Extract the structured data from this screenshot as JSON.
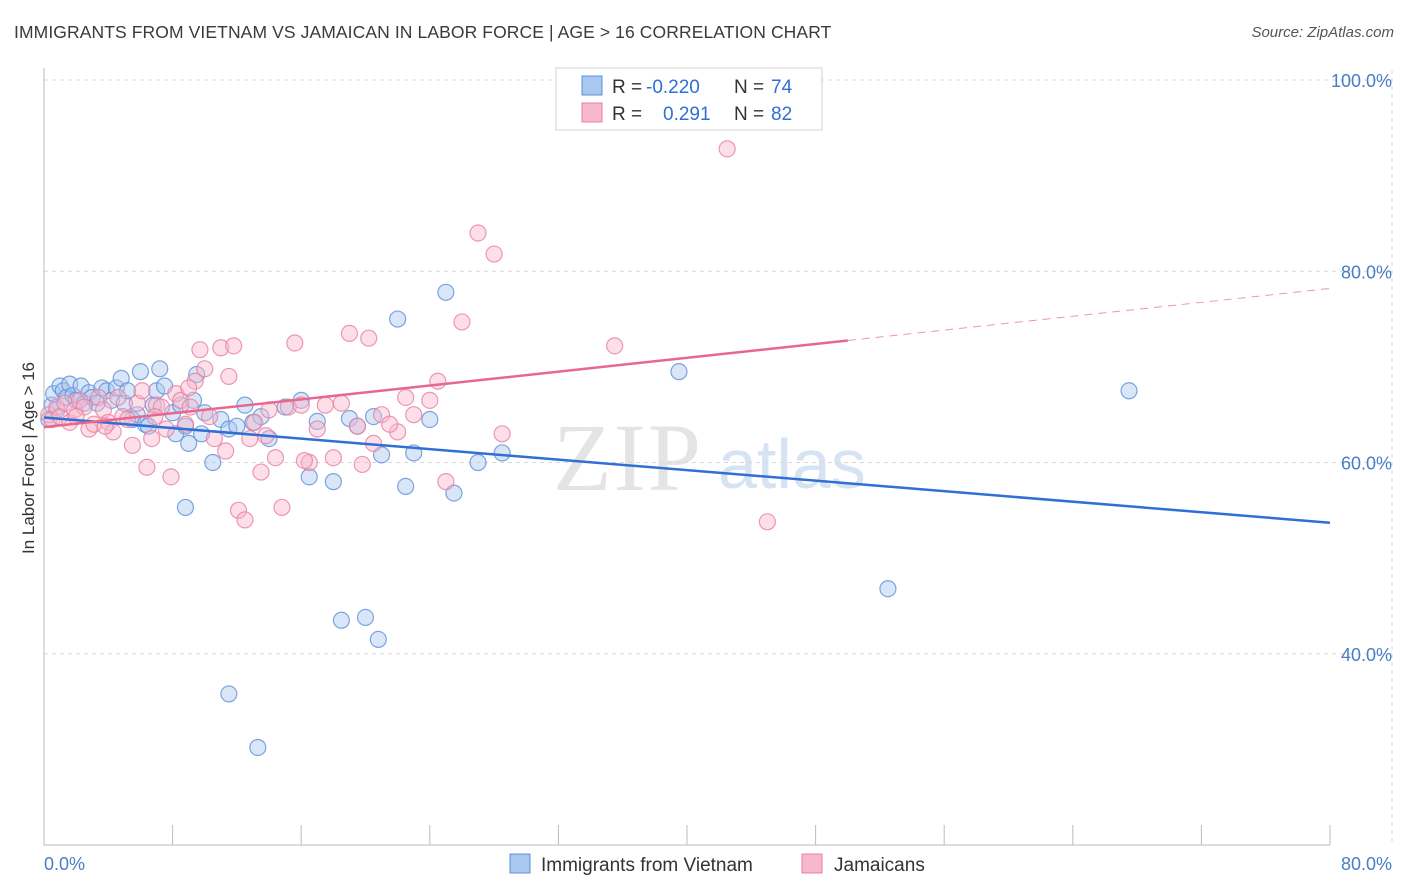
{
  "title": "IMMIGRANTS FROM VIETNAM VS JAMAICAN IN LABOR FORCE | AGE > 16 CORRELATION CHART",
  "source": "Source: ZipAtlas.com",
  "watermark": {
    "zip": "ZIP",
    "atlas": "atlas"
  },
  "colors": {
    "series1_fill": "#a8c8f0",
    "series1_stroke": "#5f8fd8",
    "series1_line": "#2f6fd6",
    "series2_fill": "#f8b8cc",
    "series2_stroke": "#e87fa0",
    "series2_line": "#e8678f",
    "grid": "#d8d8d8",
    "tick_text": "#4a7cc7"
  },
  "legend": {
    "rows": [
      {
        "r_label": "R = ",
        "r_value": "-0.220",
        "n_label": "N = ",
        "n_value": "74"
      },
      {
        "r_label": "R = ",
        "r_value": "0.291",
        "n_label": "N = ",
        "n_value": "82"
      }
    ]
  },
  "chart_data": {
    "type": "scatter",
    "title": "IMMIGRANTS FROM VIETNAM VS JAMAICAN IN LABOR FORCE | AGE > 16 CORRELATION CHART",
    "xlabel": "",
    "ylabel": "In Labor Force | Age > 16",
    "xlim": [
      0,
      80
    ],
    "ylim": [
      20,
      100
    ],
    "x_tick_labels": [
      "0.0%",
      "80.0%"
    ],
    "y_ticks": [
      40,
      60,
      80,
      100
    ],
    "y_tick_labels": [
      "40.0%",
      "60.0%",
      "80.0%",
      "100.0%"
    ],
    "grid": true,
    "legend_position": "top-center",
    "series": [
      {
        "name": "Immigrants from Vietnam",
        "R": -0.22,
        "N": 74,
        "trend": {
          "x0": 0,
          "y0": 64.7,
          "x1": 80,
          "y1": 53.7,
          "dashed_from": null
        },
        "points": [
          [
            0.3,
            64.5
          ],
          [
            0.5,
            66
          ],
          [
            0.6,
            67.2
          ],
          [
            0.8,
            65.5
          ],
          [
            1.0,
            68
          ],
          [
            1.2,
            67.5
          ],
          [
            1.4,
            66.8
          ],
          [
            1.6,
            68.2
          ],
          [
            1.8,
            67
          ],
          [
            2.0,
            66.5
          ],
          [
            2.3,
            68
          ],
          [
            2.5,
            66.2
          ],
          [
            2.8,
            67.3
          ],
          [
            3.0,
            66.8
          ],
          [
            3.3,
            66.2
          ],
          [
            3.6,
            67.8
          ],
          [
            3.9,
            67.5
          ],
          [
            4.2,
            66.5
          ],
          [
            4.5,
            67.8
          ],
          [
            4.8,
            68.8
          ],
          [
            5.0,
            66.2
          ],
          [
            5.2,
            67.5
          ],
          [
            5.5,
            64.5
          ],
          [
            5.8,
            65
          ],
          [
            6.0,
            69.5
          ],
          [
            6.3,
            64
          ],
          [
            6.5,
            63.8
          ],
          [
            6.8,
            66
          ],
          [
            7.0,
            67.5
          ],
          [
            7.2,
            69.8
          ],
          [
            7.5,
            68
          ],
          [
            8.0,
            65.2
          ],
          [
            8.2,
            63
          ],
          [
            8.5,
            66
          ],
          [
            8.8,
            63.8
          ],
          [
            9.0,
            62
          ],
          [
            9.3,
            66.5
          ],
          [
            9.5,
            69.2
          ],
          [
            9.8,
            63
          ],
          [
            10.0,
            65.2
          ],
          [
            10.5,
            60
          ],
          [
            11.0,
            64.5
          ],
          [
            11.5,
            63.5
          ],
          [
            12.0,
            63.8
          ],
          [
            12.5,
            66
          ],
          [
            13.0,
            64.2
          ],
          [
            13.5,
            64.8
          ],
          [
            14.0,
            62.5
          ],
          [
            15.0,
            65.8
          ],
          [
            16.0,
            66.5
          ],
          [
            16.5,
            58.5
          ],
          [
            17.0,
            64.3
          ],
          [
            18.0,
            58
          ],
          [
            19.0,
            64.6
          ],
          [
            19.5,
            63.8
          ],
          [
            20.5,
            64.8
          ],
          [
            21.0,
            60.8
          ],
          [
            22.0,
            75
          ],
          [
            22.5,
            57.5
          ],
          [
            23.0,
            61
          ],
          [
            24.0,
            64.5
          ],
          [
            25.0,
            77.8
          ],
          [
            25.5,
            56.8
          ],
          [
            27.0,
            60
          ],
          [
            28.5,
            61
          ],
          [
            39.5,
            69.5
          ],
          [
            52.5,
            46.8
          ],
          [
            67.5,
            67.5
          ],
          [
            8.8,
            55.3
          ],
          [
            18.5,
            43.5
          ],
          [
            20.0,
            43.8
          ],
          [
            20.8,
            41.5
          ],
          [
            11.5,
            35.8
          ],
          [
            13.3,
            30.2
          ]
        ]
      },
      {
        "name": "Jamaicans",
        "R": 0.291,
        "N": 82,
        "trend": {
          "x0": 0,
          "y0": 63.7,
          "x1": 80,
          "y1": 78.2,
          "dashed_from": 50
        },
        "points": [
          [
            0.3,
            65
          ],
          [
            0.5,
            64.5
          ],
          [
            0.8,
            65.8
          ],
          [
            1.0,
            64.8
          ],
          [
            1.3,
            66.2
          ],
          [
            1.6,
            64.2
          ],
          [
            1.9,
            65.5
          ],
          [
            2.2,
            66.5
          ],
          [
            2.5,
            65.8
          ],
          [
            2.8,
            63.5
          ],
          [
            3.1,
            64
          ],
          [
            3.4,
            66.8
          ],
          [
            3.7,
            65.5
          ],
          [
            4.0,
            64.2
          ],
          [
            4.3,
            63.2
          ],
          [
            4.6,
            66.8
          ],
          [
            4.9,
            64.8
          ],
          [
            5.2,
            64.5
          ],
          [
            5.5,
            61.8
          ],
          [
            5.8,
            66.2
          ],
          [
            6.1,
            67.5
          ],
          [
            6.4,
            59.5
          ],
          [
            6.7,
            62.5
          ],
          [
            7.0,
            66
          ],
          [
            7.3,
            65.8
          ],
          [
            7.6,
            63.5
          ],
          [
            7.9,
            58.5
          ],
          [
            8.2,
            67.2
          ],
          [
            8.5,
            66.5
          ],
          [
            8.8,
            64
          ],
          [
            9.1,
            65.8
          ],
          [
            9.4,
            68.5
          ],
          [
            9.7,
            71.8
          ],
          [
            10.0,
            69.8
          ],
          [
            10.3,
            64.8
          ],
          [
            10.6,
            62.5
          ],
          [
            11.0,
            72
          ],
          [
            11.5,
            69
          ],
          [
            11.8,
            72.2
          ],
          [
            12.1,
            55
          ],
          [
            12.5,
            54
          ],
          [
            12.8,
            62.5
          ],
          [
            13.1,
            64.2
          ],
          [
            13.5,
            59
          ],
          [
            14.0,
            65.5
          ],
          [
            14.4,
            60.5
          ],
          [
            14.8,
            55.3
          ],
          [
            15.2,
            65.8
          ],
          [
            15.6,
            72.5
          ],
          [
            16.0,
            66
          ],
          [
            16.5,
            60
          ],
          [
            17.0,
            63.5
          ],
          [
            17.5,
            66
          ],
          [
            18.0,
            60.5
          ],
          [
            18.5,
            66.2
          ],
          [
            19.0,
            73.5
          ],
          [
            19.5,
            63.8
          ],
          [
            19.8,
            59.8
          ],
          [
            20.2,
            73
          ],
          [
            20.5,
            62
          ],
          [
            21.0,
            65
          ],
          [
            22.0,
            63.2
          ],
          [
            23.0,
            65
          ],
          [
            24.0,
            66.5
          ],
          [
            24.5,
            68.5
          ],
          [
            25.0,
            58
          ],
          [
            26.0,
            74.7
          ],
          [
            27.0,
            84
          ],
          [
            28.0,
            81.8
          ],
          [
            28.5,
            63
          ],
          [
            35.5,
            72.2
          ],
          [
            42.5,
            92.8
          ],
          [
            45.0,
            53.8
          ],
          [
            2.0,
            64.8
          ],
          [
            3.8,
            63.8
          ],
          [
            6.9,
            64.8
          ],
          [
            9.0,
            67.8
          ],
          [
            11.3,
            61.2
          ],
          [
            13.8,
            62.8
          ],
          [
            16.2,
            60.2
          ],
          [
            21.5,
            64
          ],
          [
            22.5,
            66.8
          ]
        ]
      }
    ]
  },
  "bottom_legend": [
    {
      "label": "Immigrants from Vietnam"
    },
    {
      "label": "Jamaicans"
    }
  ]
}
